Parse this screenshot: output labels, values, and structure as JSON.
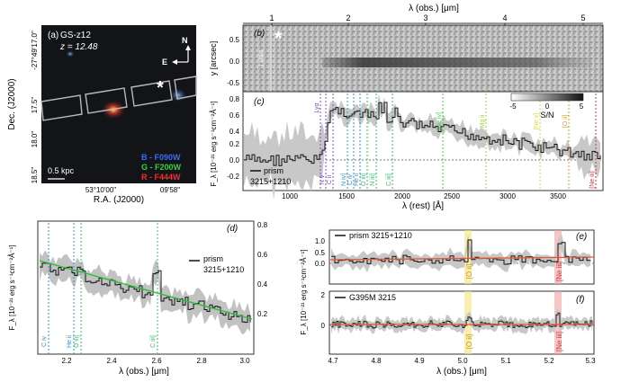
{
  "panel_a": {
    "tag": "(a)",
    "name": "GS-z12",
    "redshift": "z = 12.48",
    "compass_n": "N",
    "compass_e": "E",
    "scale_label": "0.5 kpc",
    "bands": [
      {
        "text": "B - F090W",
        "color": "#3c6cf0"
      },
      {
        "text": "G - F200W",
        "color": "#2fd23a"
      },
      {
        "text": "R - F444W",
        "color": "#ee3030"
      }
    ],
    "ylabel": "Dec. (J2000)",
    "xlabel": "R.A. (J2000)",
    "yticks": [
      "-27°49'17.0\"",
      "17.5\"",
      "18.0\"",
      "18.5\""
    ],
    "xticks": [
      "53°10'00\"",
      "09'58\""
    ],
    "marker": "*"
  },
  "panel_b": {
    "tag": "(b)",
    "ylabel": "y [arcsec]",
    "top_axis_label": "λ (obs.) [μm]",
    "top_ticks": [
      "1",
      "2",
      "3",
      "4",
      "5"
    ],
    "yticks": [
      "0.5",
      "0.0",
      "-0.5"
    ],
    "slit_text": "1 slitlet",
    "marker": "*"
  },
  "panel_c": {
    "tag": "(c)",
    "ylabel": "F_λ [10⁻²¹ erg s⁻¹cm⁻²Å⁻¹]",
    "xlabel": "λ (rest) [Å]",
    "xticks": [
      "1000",
      "1500",
      "2000",
      "2500",
      "3000",
      "3500"
    ],
    "yticks": [
      "0.8",
      "0.6",
      "0.4",
      "0.2",
      "0.0",
      "-0.2"
    ],
    "legend": [
      "prism",
      "3215+1210"
    ],
    "colorbar_label": "S/N",
    "colorbar_ticks": [
      "-5",
      "0",
      "5"
    ],
    "lines": [
      {
        "label": "Lyα",
        "color": "#7b4fc9"
      },
      {
        "label": "N v",
        "color": "#7b4fc9"
      },
      {
        "label": "C ii",
        "color": "#7b4fc9"
      },
      {
        "label": "N iv]",
        "color": "#3a8fc8"
      },
      {
        "label": "C iv",
        "color": "#3a8fc8"
      },
      {
        "label": "He ii",
        "color": "#3a8fc8"
      },
      {
        "label": "O iii]",
        "color": "#2fbf6a"
      },
      {
        "label": "N iii]",
        "color": "#2fbf6a"
      },
      {
        "label": "C iii]",
        "color": "#2fbf6a"
      },
      {
        "label": "[Ne iv]",
        "color": "#44cc44"
      },
      {
        "label": "Mg ii",
        "color": "#a6d62e"
      },
      {
        "label": "[Ne v]",
        "color": "#d8d82e"
      },
      {
        "label": "[O ii]",
        "color": "#e0a020"
      },
      {
        "label": "[Ne iii]",
        "color": "#cc3a3a"
      }
    ]
  },
  "panel_d": {
    "tag": "(d)",
    "ylabel": "F_λ [10⁻²¹ erg s⁻¹cm⁻²Å⁻¹]",
    "xlabel": "λ (obs.) [μm]",
    "xticks": [
      "2.2",
      "2.4",
      "2.6",
      "2.8",
      "3.0"
    ],
    "yticks_right": [
      "0.8",
      "0.6",
      "0.4",
      "0.2"
    ],
    "legend": [
      "prism",
      "3215+1210"
    ],
    "lines": [
      {
        "label": "C iv",
        "color": "#3a8fc8"
      },
      {
        "label": "He ii",
        "color": "#3a8fc8"
      },
      {
        "label": "O iii]",
        "color": "#2fbf6a"
      },
      {
        "label": "C iii]",
        "color": "#2fbf6a"
      }
    ]
  },
  "panel_e": {
    "tag": "(e)",
    "legend": "prism 3215+1210",
    "yticks": [
      "1.0",
      "0.5",
      "0.0"
    ],
    "lines": [
      {
        "label": "[O ii]",
        "color": "#e0a020"
      },
      {
        "label": "[Ne iii]",
        "color": "#cc3a3a"
      }
    ]
  },
  "panel_f": {
    "tag": "(f)",
    "legend": "G395M 3215",
    "ylabel": "F_λ [10⁻²¹ erg s⁻¹cm⁻²Å⁻¹]",
    "xlabel": "λ (obs.) [μm]",
    "xticks": [
      "4.7",
      "4.8",
      "4.9",
      "5.0",
      "5.1",
      "5.2",
      "5.3"
    ],
    "yticks": [
      "2",
      "0"
    ],
    "lines": [
      {
        "label": "[O ii]",
        "color": "#e0a020"
      },
      {
        "label": "[Ne iii]",
        "color": "#cc3a3a"
      }
    ]
  }
}
